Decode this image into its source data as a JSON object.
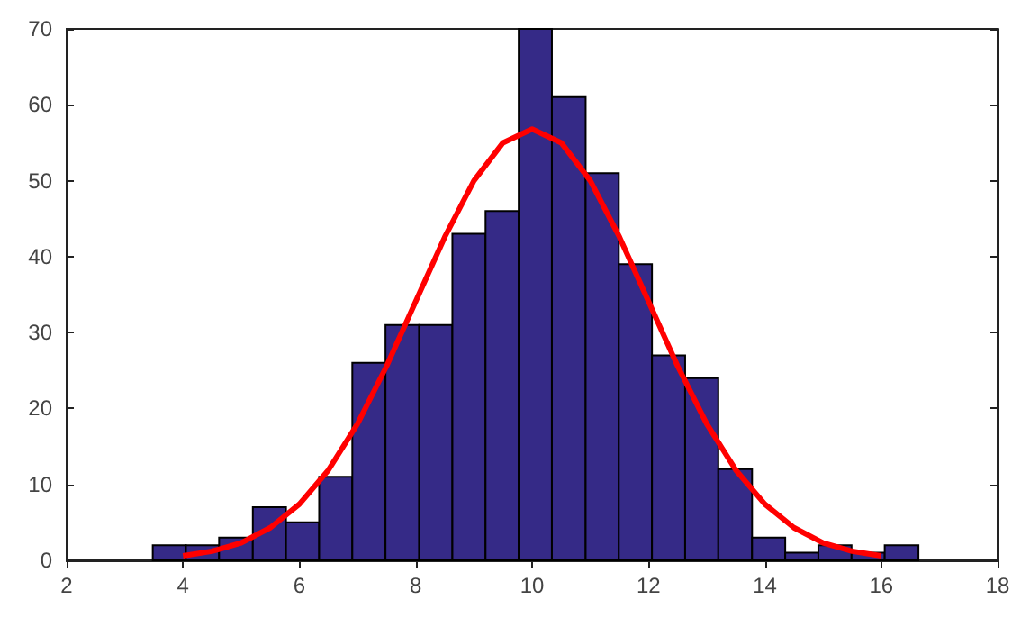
{
  "chart_data": {
    "type": "histogram",
    "bins": [
      3.48,
      4.05,
      4.62,
      5.2,
      5.77,
      6.34,
      6.91,
      7.48,
      8.06,
      8.63,
      9.2,
      9.77,
      10.34,
      10.92,
      11.49,
      12.06,
      12.63,
      13.2,
      13.78,
      14.35,
      14.92,
      15.49,
      16.06,
      16.64
    ],
    "values": [
      2,
      2,
      3,
      7,
      5,
      11,
      26,
      31,
      31,
      43,
      46,
      70,
      61,
      51,
      39,
      27,
      24,
      12,
      3,
      1,
      2,
      1,
      2
    ],
    "color": "#352a87",
    "series": [
      {
        "type": "line",
        "color": "#ff0000",
        "x": [
          4,
          4.5,
          5,
          5.5,
          6,
          6.5,
          7,
          7.5,
          8,
          8.5,
          9,
          9.5,
          10,
          10.5,
          11,
          11.5,
          12,
          12.5,
          13,
          13.5,
          14,
          14.5,
          15,
          15.5,
          16
        ],
        "values": [
          0.6,
          1.2,
          2.3,
          4.3,
          7.4,
          11.9,
          18,
          25.6,
          34.1,
          42.6,
          50,
          55,
          56.8,
          55,
          50,
          42.6,
          34.1,
          25.6,
          18,
          11.9,
          7.4,
          4.3,
          2.3,
          1.2,
          0.6
        ]
      }
    ],
    "xlim": [
      2,
      18
    ],
    "xticks": [
      2,
      4,
      6,
      8,
      10,
      12,
      14,
      16,
      18
    ],
    "ylim": [
      0,
      70
    ],
    "yticks": [
      0,
      10,
      20,
      30,
      40,
      50,
      60,
      70
    ],
    "grid": false,
    "marker": "none",
    "line_style": "solid"
  }
}
